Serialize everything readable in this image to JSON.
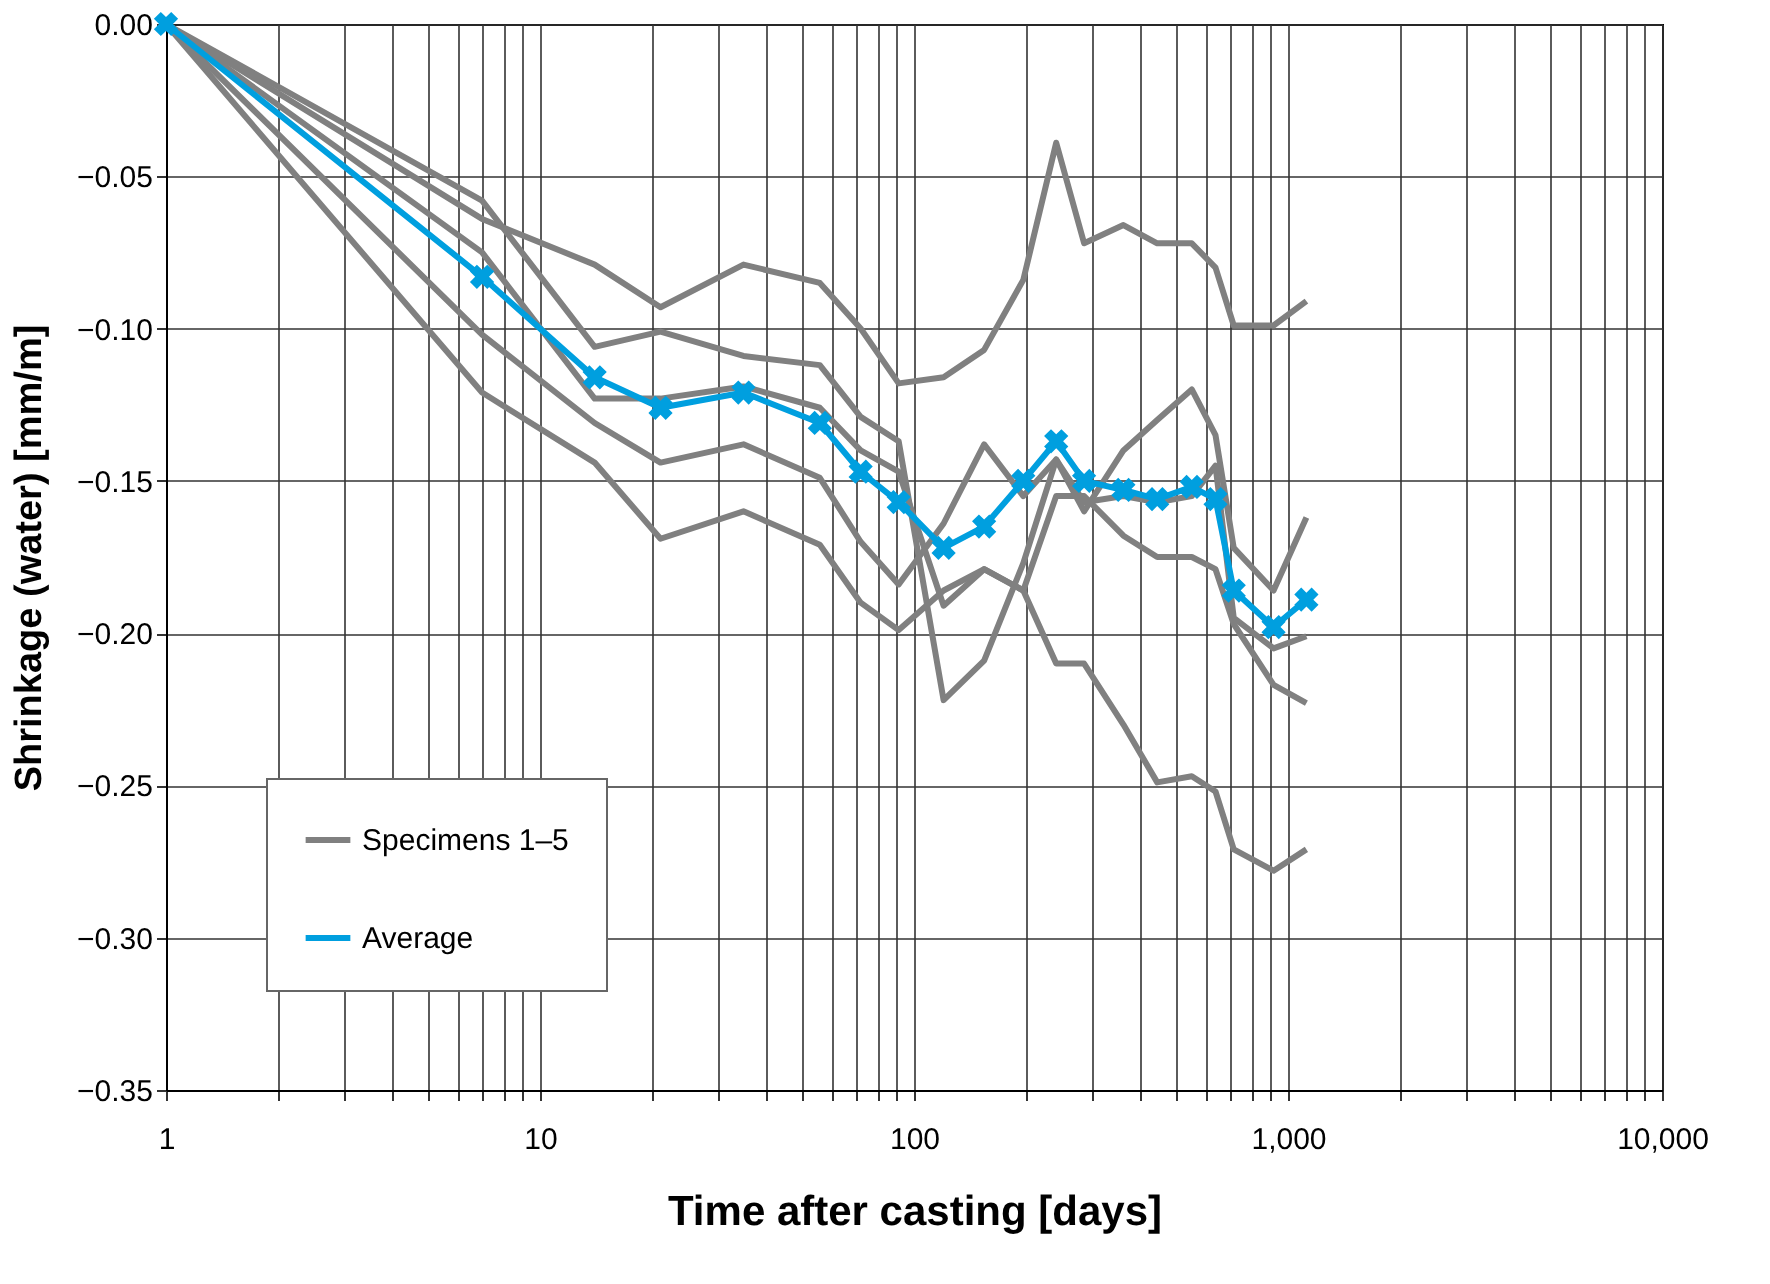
{
  "chart_data": {
    "type": "line",
    "xlabel": "Time after casting [days]",
    "ylabel": "Shrinkage (water) [mm/m]",
    "log": "x",
    "grid": true,
    "legend": "bottom left",
    "line_style": "solid",
    "x": [
      1,
      7,
      14,
      21,
      35,
      56,
      72,
      91,
      120,
      154,
      196,
      240,
      285,
      363,
      447,
      553,
      640,
      716,
      915,
      1120
    ],
    "series": [
      {
        "name": "Specimens 1–5",
        "color": "#808080",
        "marker": "none",
        "values": [
          0,
          -0.064,
          -0.079,
          -0.093,
          -0.079,
          -0.085,
          -0.1,
          -0.118,
          -0.116,
          -0.107,
          -0.084,
          -0.039,
          -0.072,
          -0.066,
          -0.072,
          -0.072,
          -0.08,
          -0.099,
          -0.099,
          -0.091
        ]
      },
      {
        "color": "#808080",
        "marker": "none",
        "values": [
          0,
          -0.058,
          -0.106,
          -0.101,
          -0.109,
          -0.112,
          -0.129,
          -0.137,
          -0.222,
          -0.209,
          -0.177,
          -0.143,
          -0.157,
          -0.155,
          -0.157,
          -0.155,
          -0.145,
          -0.195,
          -0.205,
          -0.201
        ]
      },
      {
        "color": "#808080",
        "marker": "none",
        "values": [
          0,
          -0.075,
          -0.123,
          -0.123,
          -0.119,
          -0.126,
          -0.14,
          -0.147,
          -0.191,
          -0.179,
          -0.186,
          -0.155,
          -0.155,
          -0.168,
          -0.175,
          -0.175,
          -0.179,
          -0.197,
          -0.217,
          -0.223
        ]
      },
      {
        "color": "#808080",
        "marker": "none",
        "values": [
          0,
          -0.102,
          -0.131,
          -0.144,
          -0.138,
          -0.149,
          -0.17,
          -0.184,
          -0.164,
          -0.138,
          -0.155,
          -0.143,
          -0.16,
          -0.14,
          -0.13,
          -0.12,
          -0.135,
          -0.172,
          -0.186,
          -0.162
        ]
      },
      {
        "color": "#808080",
        "marker": "none",
        "values": [
          0,
          -0.121,
          -0.144,
          -0.169,
          -0.16,
          -0.171,
          -0.19,
          -0.199,
          -0.186,
          -0.179,
          -0.186,
          -0.21,
          -0.21,
          -0.23,
          -0.249,
          -0.247,
          -0.252,
          -0.271,
          -0.278,
          -0.271
        ]
      },
      {
        "name": "Average",
        "color": "#009fdf",
        "marker": "cross",
        "values": [
          0,
          -0.083,
          -0.116,
          -0.126,
          -0.121,
          -0.131,
          -0.147,
          -0.157,
          -0.172,
          -0.165,
          -0.15,
          -0.137,
          -0.15,
          -0.153,
          -0.156,
          -0.152,
          -0.156,
          -0.186,
          -0.198,
          -0.189
        ]
      }
    ],
    "xlim": [
      1,
      10000
    ],
    "xticks": [
      1,
      {
        "value": 2,
        "label": null
      },
      {
        "value": 3,
        "label": null
      },
      {
        "value": 4,
        "label": null
      },
      {
        "value": 5,
        "label": null
      },
      {
        "value": 6,
        "label": null
      },
      {
        "value": 7,
        "label": null
      },
      {
        "value": 8,
        "label": null
      },
      {
        "value": 9,
        "label": null
      },
      10,
      {
        "value": 20,
        "label": null
      },
      {
        "value": 30,
        "label": null
      },
      {
        "value": 40,
        "label": null
      },
      {
        "value": 50,
        "label": null
      },
      {
        "value": 60,
        "label": null
      },
      {
        "value": 70,
        "label": null
      },
      {
        "value": 80,
        "label": null
      },
      {
        "value": 90,
        "label": null
      },
      100,
      {
        "value": 200,
        "label": null
      },
      {
        "value": 300,
        "label": null
      },
      {
        "value": 400,
        "label": null
      },
      {
        "value": 500,
        "label": null
      },
      {
        "value": 600,
        "label": null
      },
      {
        "value": 700,
        "label": null
      },
      {
        "value": 800,
        "label": null
      },
      {
        "value": 900,
        "label": null
      },
      {
        "value": 1000,
        "label": "1,000"
      },
      {
        "value": 2000,
        "label": null
      },
      {
        "value": 3000,
        "label": null
      },
      {
        "value": 4000,
        "label": null
      },
      {
        "value": 5000,
        "label": null
      },
      {
        "value": 6000,
        "label": null
      },
      {
        "value": 7000,
        "label": null
      },
      {
        "value": 8000,
        "label": null
      },
      {
        "value": 9000,
        "label": null
      },
      {
        "value": 10000,
        "label": "10,000"
      }
    ],
    "ylim": [
      -0.35,
      0
    ],
    "yticks": [
      {
        "value": 0,
        "label": "0.00"
      },
      {
        "value": -0.05,
        "label": "−0.05"
      },
      {
        "value": -0.1,
        "label": "−0.10"
      },
      {
        "value": -0.15,
        "label": "−0.15"
      },
      {
        "value": -0.2,
        "label": "−0.20"
      },
      {
        "value": -0.25,
        "label": "−0.25"
      },
      {
        "value": -0.3,
        "label": "−0.30"
      },
      {
        "value": -0.35,
        "label": "−0.35"
      }
    ]
  }
}
